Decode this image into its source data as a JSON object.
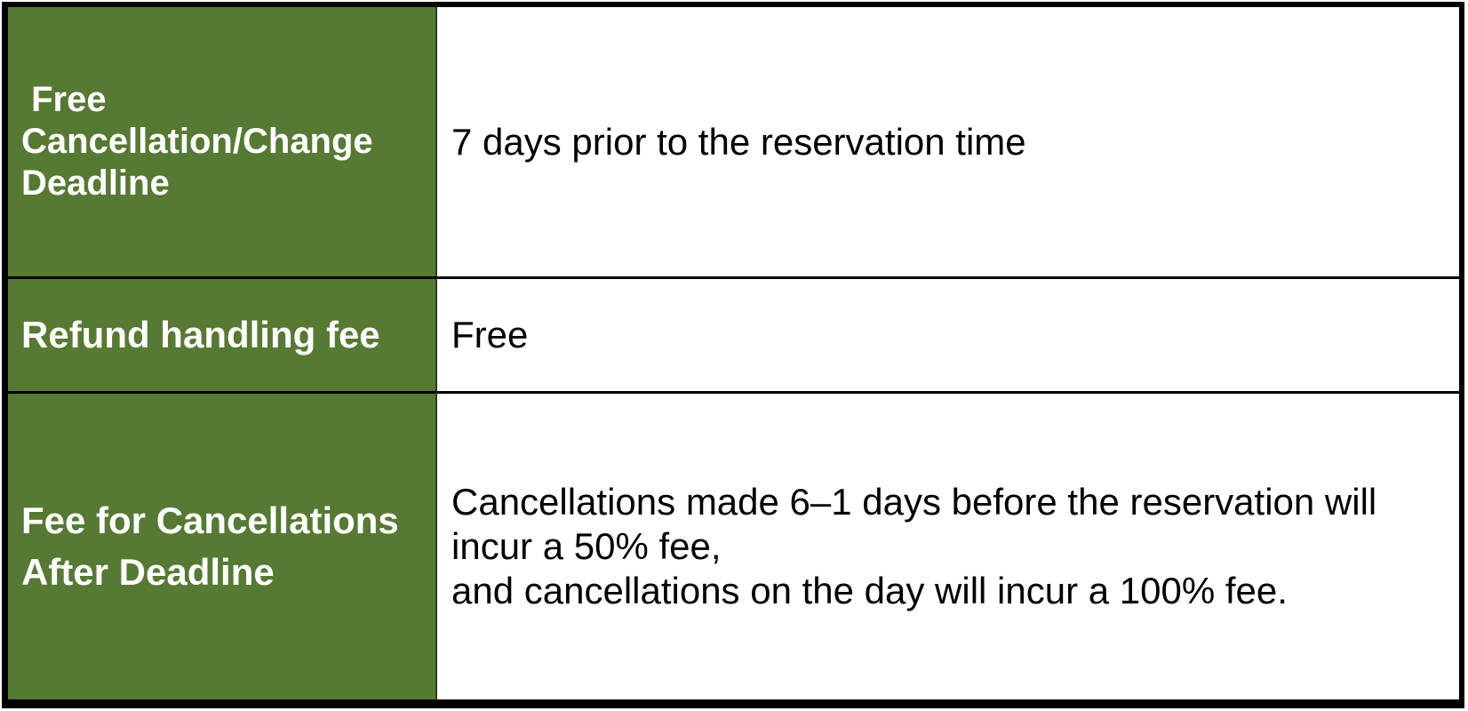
{
  "table": {
    "colors": {
      "label_background_green": "#567933",
      "label_text": "#ffffff",
      "value_text": "#000000",
      "border": "#000000"
    },
    "rows": [
      {
        "label": " Free\nCancellation/Change\nDeadline",
        "value": "7 days prior to the reservation time"
      },
      {
        "label": "Refund handling fee",
        "value": "Free"
      },
      {
        "label": "Fee for Cancellations\nAfter Deadline",
        "value": "Cancellations made 6–1 days before the reservation will\nincur a 50% fee,\nand cancellations on the day will incur a 100% fee."
      }
    ]
  }
}
